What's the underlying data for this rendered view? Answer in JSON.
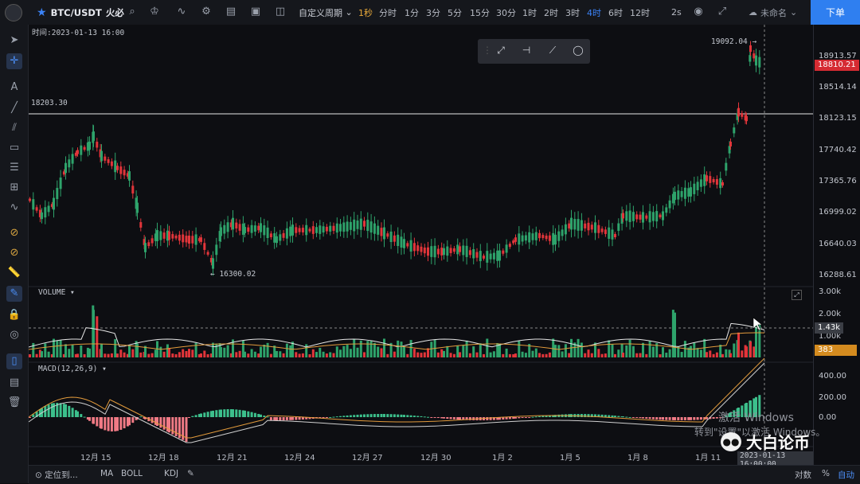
{
  "header": {
    "symbol": "BTC/USDT",
    "exchange": "火必",
    "timeframes": [
      "1秒",
      "分时",
      "1分",
      "3分",
      "5分",
      "15分",
      "30分",
      "1时",
      "2时",
      "3时",
      "4时",
      "6时",
      "12时"
    ],
    "active_timeframe": "4时",
    "custom_period": "自定义周期",
    "second_interval": "2s",
    "layout_name": "未命名",
    "order_button": "下单"
  },
  "chart": {
    "time_label": "时间:2023-01-13 16:00",
    "price_axis": [
      "18913.57",
      "18514.14",
      "18123.15",
      "17740.42",
      "17365.76",
      "16999.02",
      "16640.03",
      "16288.61"
    ],
    "current_price": "18810.21",
    "high_label": "19092.04",
    "low_label": "16300.02",
    "hline_label": "18203.30",
    "volume_label": "VOLUME",
    "volume_axis": [
      "3.00k",
      "2.00k",
      "1.00k"
    ],
    "volume_marker": "1.43k",
    "volume_current": "383",
    "macd_label": "MACD(12,26,9)",
    "macd_axis": [
      "400.00",
      "200.00",
      "0.00"
    ],
    "x_labels": [
      "12月 15",
      "12月 18",
      "12月 21",
      "12月 24",
      "12月 27",
      "12月 30",
      "1月 2",
      "1月 5",
      "1月 8",
      "1月 11"
    ],
    "crosshair_time": "2023-01-13 16:00:00",
    "up_color": "#2ea36b",
    "down_color": "#e2353a"
  },
  "bottom": {
    "goto": "定位到...",
    "indicators": [
      "MA",
      "BOLL",
      "KDJ"
    ],
    "log": "对数",
    "percent": "%",
    "auto": "自动"
  },
  "watermark": {
    "line1": "激活 Windows",
    "line2": "转到\"设置\"以激活 Windows。",
    "brand": "大白论币"
  }
}
